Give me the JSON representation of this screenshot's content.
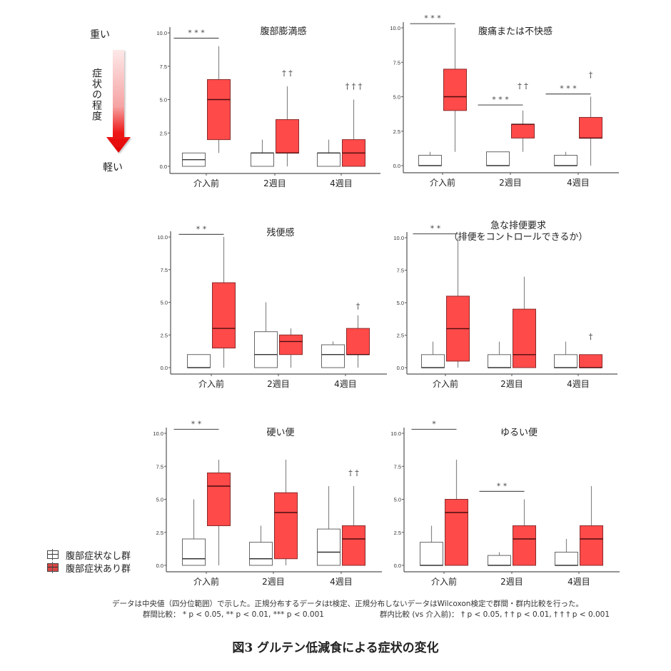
{
  "scale": {
    "top_label": "重い",
    "bottom_label": "軽い",
    "axis_label": "症状の程度",
    "arrow_colors": {
      "top": "#fde6e6",
      "bottom": "#e60000"
    }
  },
  "legend": {
    "items": [
      {
        "label": "腹部症状なし群",
        "color": "#ffffff"
      },
      {
        "label": "腹部症状あり群",
        "color": "#ff4a4a"
      }
    ]
  },
  "notes": {
    "line1": "データは中央値（四分位範囲）で示した。正規分布するデータはt検定、正規分布しないデータはWilcoxon検定で群間・群内比較を行った。",
    "between": "群間比較： * p < 0.05, ** p < 0.01, *** p < 0.001",
    "within": "群内比較 (vs 介入前)： † p < 0.05, † † p < 0.01, † † † p < 0.001"
  },
  "caption": "図3  グルテン低減食による症状の変化",
  "colors": {
    "no_symptom_fill": "#ffffff",
    "symptom_fill": "#ff4a4a",
    "box_stroke": "#555555",
    "axis": "#555555"
  },
  "chart_data": [
    {
      "type": "box",
      "title": "腹部膨満感",
      "categories": [
        "介入前",
        "2週目",
        "4週目"
      ],
      "ylim": [
        0,
        10
      ],
      "yticks": [
        "0.0",
        "2.5",
        "5.0",
        "7.5",
        "10.0"
      ],
      "series": [
        {
          "name": "腹部症状なし群",
          "boxes": [
            {
              "min": 0,
              "q1": 0,
              "median": 0.5,
              "q3": 1,
              "max": 1
            },
            {
              "min": 0,
              "q1": 0,
              "median": 1,
              "q3": 1,
              "max": 2
            },
            {
              "min": 0,
              "q1": 0,
              "median": 1,
              "q3": 1,
              "max": 2
            }
          ]
        },
        {
          "name": "腹部症状あり群",
          "boxes": [
            {
              "min": 1,
              "q1": 2,
              "median": 5,
              "q3": 6.5,
              "max": 9
            },
            {
              "min": 0,
              "q1": 1,
              "median": 1,
              "q3": 3.5,
              "max": 6
            },
            {
              "min": 0,
              "q1": 0,
              "median": 1,
              "q3": 2,
              "max": 5
            }
          ]
        }
      ],
      "between_sig": [
        {
          "group": 0,
          "mark": "* * *",
          "y": 9.6
        }
      ],
      "within_sig": [
        {
          "group": 1,
          "mark": "† †",
          "y": 6.8
        },
        {
          "group": 2,
          "mark": "† † †",
          "y": 5.8
        }
      ]
    },
    {
      "type": "box",
      "title": "腹痛または不快感",
      "categories": [
        "介入前",
        "2週目",
        "4週目"
      ],
      "ylim": [
        0,
        10
      ],
      "yticks": [
        "0.0",
        "2.5",
        "5.0",
        "7.5",
        "10.0"
      ],
      "series": [
        {
          "name": "腹部症状なし群",
          "boxes": [
            {
              "min": 0,
              "q1": 0,
              "median": 0,
              "q3": 0.75,
              "max": 1
            },
            {
              "min": 0,
              "q1": 0,
              "median": 0,
              "q3": 1,
              "max": 1
            },
            {
              "min": 0,
              "q1": 0,
              "median": 0,
              "q3": 0.75,
              "max": 1
            }
          ]
        },
        {
          "name": "腹部症状あり群",
          "boxes": [
            {
              "min": 1,
              "q1": 4,
              "median": 5,
              "q3": 7,
              "max": 10
            },
            {
              "min": 1,
              "q1": 2,
              "median": 3,
              "q3": 3,
              "max": 4
            },
            {
              "min": 0,
              "q1": 2,
              "median": 2,
              "q3": 3.5,
              "max": 5
            }
          ]
        }
      ],
      "between_sig": [
        {
          "group": 0,
          "mark": "* * *",
          "y": 10.3
        },
        {
          "group": 1,
          "mark": "* * *",
          "y": 4.4
        },
        {
          "group": 2,
          "mark": "* * *",
          "y": 5.2
        }
      ],
      "within_sig": [
        {
          "group": 1,
          "mark": "† †",
          "y": 5.6
        },
        {
          "group": 2,
          "mark": "†",
          "y": 6.4
        }
      ]
    },
    {
      "type": "box",
      "title": "残便感",
      "categories": [
        "介入前",
        "2週目",
        "4週目"
      ],
      "ylim": [
        0,
        10
      ],
      "yticks": [
        "0.0",
        "2.5",
        "5.0",
        "7.5",
        "10.0"
      ],
      "series": [
        {
          "name": "腹部症状なし群",
          "boxes": [
            {
              "min": 0,
              "q1": 0,
              "median": 0,
              "q3": 1,
              "max": 1
            },
            {
              "min": 0,
              "q1": 0,
              "median": 1,
              "q3": 2.75,
              "max": 5
            },
            {
              "min": 0,
              "q1": 0,
              "median": 1,
              "q3": 1.75,
              "max": 2
            }
          ]
        },
        {
          "name": "腹部症状あり群",
          "boxes": [
            {
              "min": 0,
              "q1": 1.5,
              "median": 3,
              "q3": 6.5,
              "max": 10
            },
            {
              "min": 0,
              "q1": 1,
              "median": 2,
              "q3": 2.5,
              "max": 3
            },
            {
              "min": 0,
              "q1": 1,
              "median": 1,
              "q3": 3,
              "max": 4
            }
          ]
        }
      ],
      "between_sig": [
        {
          "group": 0,
          "mark": "* *",
          "y": 10.2
        }
      ],
      "within_sig": [
        {
          "group": 2,
          "mark": "†",
          "y": 4.5
        }
      ]
    },
    {
      "type": "box",
      "title": "急な排便要求\n（排便をコントロールできるか）",
      "categories": [
        "介入前",
        "2週目",
        "4週目"
      ],
      "ylim": [
        0,
        10
      ],
      "yticks": [
        "0.0",
        "2.5",
        "5.0",
        "7.5",
        "10.0"
      ],
      "series": [
        {
          "name": "腹部症状なし群",
          "boxes": [
            {
              "min": 0,
              "q1": 0,
              "median": 0,
              "q3": 1,
              "max": 2
            },
            {
              "min": 0,
              "q1": 0,
              "median": 0,
              "q3": 1,
              "max": 2
            },
            {
              "min": 0,
              "q1": 0,
              "median": 0,
              "q3": 1,
              "max": 2
            }
          ]
        },
        {
          "name": "腹部症状あり群",
          "boxes": [
            {
              "min": 0,
              "q1": 0.5,
              "median": 3,
              "q3": 5.5,
              "max": 10
            },
            {
              "min": 0,
              "q1": 0,
              "median": 1,
              "q3": 4.5,
              "max": 7
            },
            {
              "min": 0,
              "q1": 0,
              "median": 0,
              "q3": 1,
              "max": 1
            }
          ]
        }
      ],
      "between_sig": [
        {
          "group": 0,
          "mark": "* *",
          "y": 10.3
        }
      ],
      "within_sig": [
        {
          "group": 2,
          "mark": "†",
          "y": 2.2
        }
      ]
    },
    {
      "type": "box",
      "title": "硬い便",
      "categories": [
        "介入前",
        "2週目",
        "4週目"
      ],
      "ylim": [
        0,
        10
      ],
      "yticks": [
        "0.0",
        "2.5",
        "5.0",
        "7.5",
        "10.0"
      ],
      "series": [
        {
          "name": "腹部症状なし群",
          "boxes": [
            {
              "min": 0,
              "q1": 0,
              "median": 0.5,
              "q3": 2,
              "max": 5
            },
            {
              "min": 0,
              "q1": 0,
              "median": 0.5,
              "q3": 1.75,
              "max": 3
            },
            {
              "min": 0,
              "q1": 0,
              "median": 1,
              "q3": 2.75,
              "max": 6
            }
          ]
        },
        {
          "name": "腹部症状あり群",
          "boxes": [
            {
              "min": 0,
              "q1": 3,
              "median": 6,
              "q3": 7,
              "max": 8
            },
            {
              "min": 0,
              "q1": 0.5,
              "median": 4,
              "q3": 5.5,
              "max": 8
            },
            {
              "min": 0,
              "q1": 0,
              "median": 2,
              "q3": 3,
              "max": 6
            }
          ]
        }
      ],
      "between_sig": [
        {
          "group": 0,
          "mark": "* *",
          "y": 10.3
        }
      ],
      "within_sig": [
        {
          "group": 2,
          "mark": "† †",
          "y": 6.8
        }
      ]
    },
    {
      "type": "box",
      "title": "ゆるい便",
      "categories": [
        "介入前",
        "2週目",
        "4週目"
      ],
      "ylim": [
        0,
        10
      ],
      "yticks": [
        "0.0",
        "2.5",
        "5.0",
        "7.5",
        "10.0"
      ],
      "series": [
        {
          "name": "腹部症状なし群",
          "boxes": [
            {
              "min": 0,
              "q1": 0,
              "median": 0,
              "q3": 1.75,
              "max": 3
            },
            {
              "min": 0,
              "q1": 0,
              "median": 0,
              "q3": 0.75,
              "max": 1
            },
            {
              "min": 0,
              "q1": 0,
              "median": 0,
              "q3": 1,
              "max": 2
            }
          ]
        },
        {
          "name": "腹部症状あり群",
          "boxes": [
            {
              "min": 0,
              "q1": 0,
              "median": 4,
              "q3": 5,
              "max": 8
            },
            {
              "min": 0,
              "q1": 0,
              "median": 2,
              "q3": 3,
              "max": 5
            },
            {
              "min": 0,
              "q1": 0,
              "median": 2,
              "q3": 3,
              "max": 6
            }
          ]
        }
      ],
      "between_sig": [
        {
          "group": 0,
          "mark": "*",
          "y": 10.3
        },
        {
          "group": 1,
          "mark": "* *",
          "y": 5.6
        }
      ],
      "within_sig": []
    }
  ]
}
